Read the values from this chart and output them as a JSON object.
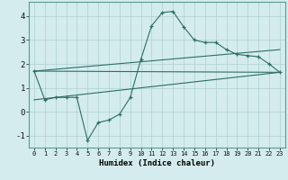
{
  "xlabel": "Humidex (Indice chaleur)",
  "background_color": "#d4ecee",
  "grid_color": "#aecfd4",
  "line_color": "#2d6e65",
  "xlim": [
    -0.5,
    23.5
  ],
  "ylim": [
    -1.5,
    4.6
  ],
  "yticks": [
    -1,
    0,
    1,
    2,
    3,
    4
  ],
  "xticks": [
    0,
    1,
    2,
    3,
    4,
    5,
    6,
    7,
    8,
    9,
    10,
    11,
    12,
    13,
    14,
    15,
    16,
    17,
    18,
    19,
    20,
    21,
    22,
    23
  ],
  "line1_x": [
    0,
    1,
    2,
    3,
    4,
    5,
    6,
    7,
    8,
    9,
    10,
    11,
    12,
    13,
    14,
    15,
    16,
    17,
    18,
    19,
    20,
    21,
    22,
    23
  ],
  "line1_y": [
    1.7,
    0.5,
    0.6,
    0.6,
    0.6,
    -1.2,
    -0.45,
    -0.35,
    -0.1,
    0.6,
    2.2,
    3.6,
    4.15,
    4.2,
    3.55,
    3.0,
    2.9,
    2.9,
    2.6,
    2.4,
    2.35,
    2.3,
    2.0,
    1.65
  ],
  "line2_x": [
    0,
    23
  ],
  "line2_y": [
    1.7,
    1.65
  ],
  "line3_x": [
    0,
    23
  ],
  "line3_y": [
    0.5,
    1.65
  ],
  "line4_x": [
    0,
    23
  ],
  "line4_y": [
    1.7,
    2.6
  ]
}
